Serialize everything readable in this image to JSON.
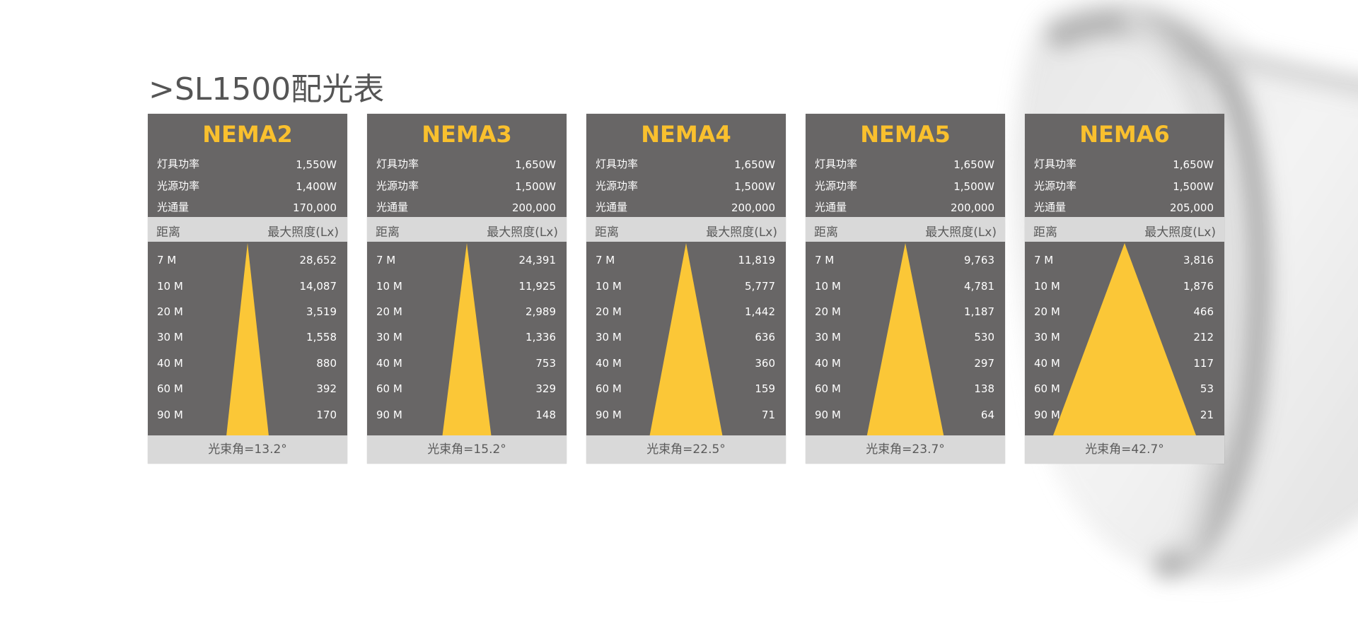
{
  "title": ">SL1500配光表",
  "colors": {
    "card_bg": "#686666",
    "accent": "#f9c02e",
    "beam": "#fbc737",
    "band": "#d9d9d9"
  },
  "cards": [
    {
      "name": "NEMA2",
      "specs": [
        {
          "label": "灯具功率",
          "value": "1,550W"
        },
        {
          "label": "光源功率",
          "value": "1,400W"
        },
        {
          "label": "光通量",
          "value": "170,000"
        }
      ],
      "header": {
        "distance": "距离",
        "lux": "最大照度(Lx)"
      },
      "rows": [
        {
          "d": "7 M",
          "lux": "28,652"
        },
        {
          "d": "10 M",
          "lux": "14,087"
        },
        {
          "d": "20 M",
          "lux": "3,519"
        },
        {
          "d": "30 M",
          "lux": "1,558"
        },
        {
          "d": "40 M",
          "lux": "880"
        },
        {
          "d": "60 M",
          "lux": "392"
        },
        {
          "d": "90 M",
          "lux": "170"
        }
      ],
      "beam_angle_deg": 13.2,
      "footer": "光束角=13.2°"
    },
    {
      "name": "NEMA3",
      "specs": [
        {
          "label": "灯具功率",
          "value": "1,650W"
        },
        {
          "label": "光源功率",
          "value": "1,500W"
        },
        {
          "label": "光通量",
          "value": "200,000"
        }
      ],
      "header": {
        "distance": "距离",
        "lux": "最大照度(Lx)"
      },
      "rows": [
        {
          "d": "7 M",
          "lux": "24,391"
        },
        {
          "d": "10 M",
          "lux": "11,925"
        },
        {
          "d": "20 M",
          "lux": "2,989"
        },
        {
          "d": "30 M",
          "lux": "1,336"
        },
        {
          "d": "40 M",
          "lux": "753"
        },
        {
          "d": "60 M",
          "lux": "329"
        },
        {
          "d": "90 M",
          "lux": "148"
        }
      ],
      "beam_angle_deg": 15.2,
      "footer": "光束角=15.2°"
    },
    {
      "name": "NEMA4",
      "specs": [
        {
          "label": "灯具功率",
          "value": "1,650W"
        },
        {
          "label": "光源功率",
          "value": "1,500W"
        },
        {
          "label": "光通量",
          "value": "200,000"
        }
      ],
      "header": {
        "distance": "距离",
        "lux": "最大照度(Lx)"
      },
      "rows": [
        {
          "d": "7 M",
          "lux": "11,819"
        },
        {
          "d": "10 M",
          "lux": "5,777"
        },
        {
          "d": "20 M",
          "lux": "1,442"
        },
        {
          "d": "30 M",
          "lux": "636"
        },
        {
          "d": "40 M",
          "lux": "360"
        },
        {
          "d": "60 M",
          "lux": "159"
        },
        {
          "d": "90 M",
          "lux": "71"
        }
      ],
      "beam_angle_deg": 22.5,
      "footer": "光束角=22.5°"
    },
    {
      "name": "NEMA5",
      "specs": [
        {
          "label": "灯具功率",
          "value": "1,650W"
        },
        {
          "label": "光源功率",
          "value": "1,500W"
        },
        {
          "label": "光通量",
          "value": "200,000"
        }
      ],
      "header": {
        "distance": "距离",
        "lux": "最大照度(Lx)"
      },
      "rows": [
        {
          "d": "7 M",
          "lux": "9,763"
        },
        {
          "d": "10 M",
          "lux": "4,781"
        },
        {
          "d": "20 M",
          "lux": "1,187"
        },
        {
          "d": "30 M",
          "lux": "530"
        },
        {
          "d": "40 M",
          "lux": "297"
        },
        {
          "d": "60 M",
          "lux": "138"
        },
        {
          "d": "90 M",
          "lux": "64"
        }
      ],
      "beam_angle_deg": 23.7,
      "footer": "光束角=23.7°"
    },
    {
      "name": "NEMA6",
      "specs": [
        {
          "label": "灯具功率",
          "value": "1,650W"
        },
        {
          "label": "光源功率",
          "value": "1,500W"
        },
        {
          "label": "光通量",
          "value": "205,000"
        }
      ],
      "header": {
        "distance": "距离",
        "lux": "最大照度(Lx)"
      },
      "rows": [
        {
          "d": "7 M",
          "lux": "3,816"
        },
        {
          "d": "10 M",
          "lux": "1,876"
        },
        {
          "d": "20 M",
          "lux": "466"
        },
        {
          "d": "30 M",
          "lux": "212"
        },
        {
          "d": "40 M",
          "lux": "117"
        },
        {
          "d": "60 M",
          "lux": "53"
        },
        {
          "d": "90 M",
          "lux": "21"
        }
      ],
      "beam_angle_deg": 42.7,
      "footer": "光束角=42.7°"
    }
  ]
}
